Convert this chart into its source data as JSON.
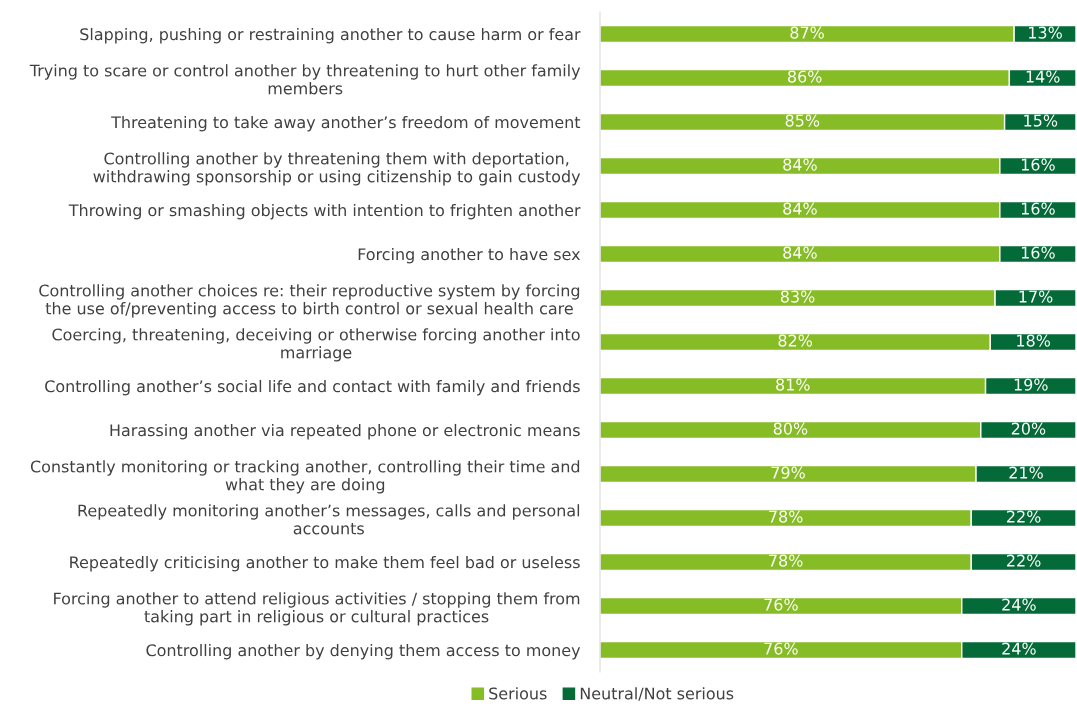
{
  "chart_data": {
    "type": "bar",
    "orientation": "horizontal",
    "stacked": true,
    "categories": [
      "Slapping, pushing or restraining another to cause harm or fear",
      "Trying to scare or control another by threatening to hurt other family\nmembers",
      "Threatening to take away another’s freedom of movement",
      "Controlling another by threatening them with deportation,\nwithdrawing sponsorship or using citizenship to gain custody",
      "Throwing or smashing objects with intention to frighten another",
      "Forcing another to have sex",
      "Controlling another choices re: their reproductive system by forcing\nthe use of/preventing access to birth control or sexual health care",
      "Coercing, threatening, deceiving or otherwise forcing another into\nmarriage",
      "Controlling another’s social life and contact with family and friends",
      "Harassing another via repeated phone or electronic means",
      "Constantly monitoring or tracking another, controlling their time and\nwhat they are doing",
      "Repeatedly monitoring another’s messages, calls and personal\naccounts",
      "Repeatedly criticising another to make them feel bad or useless",
      "Forcing another to attend religious activities / stopping them from\ntaking part in religious or cultural practices",
      "Controlling another by denying them access to money"
    ],
    "series": [
      {
        "name": "Serious",
        "color": "#86bc25",
        "values": [
          87,
          86,
          85,
          84,
          84,
          84,
          83,
          82,
          81,
          80,
          79,
          78,
          78,
          76,
          76
        ],
        "value_labels": [
          "87%",
          "86%",
          "85%",
          "84%",
          "84%",
          "84%",
          "83%",
          "82%",
          "81%",
          "80%",
          "79%",
          "78%",
          "78%",
          "76%",
          "76%"
        ]
      },
      {
        "name": "Neutral/Not serious",
        "color": "#046a38",
        "values": [
          13,
          14,
          15,
          16,
          16,
          16,
          17,
          18,
          19,
          20,
          21,
          22,
          22,
          24,
          24
        ],
        "value_labels": [
          "13%",
          "14%",
          "15%",
          "16%",
          "16%",
          "16%",
          "17%",
          "18%",
          "19%",
          "20%",
          "21%",
          "22%",
          "22%",
          "24%",
          "24%"
        ]
      }
    ],
    "xlim": [
      0,
      100
    ],
    "legend": "bottom"
  }
}
